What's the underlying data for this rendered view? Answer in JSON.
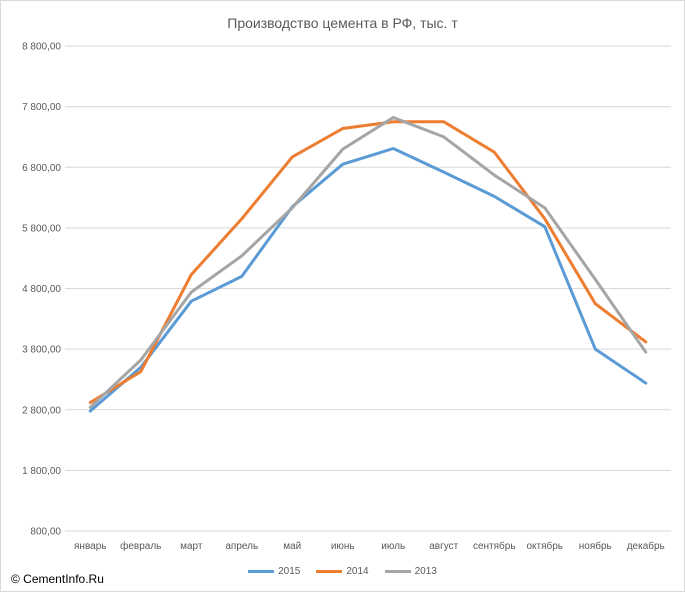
{
  "chart_data": {
    "type": "line",
    "title": "Производство цемента в РФ, тыс. т",
    "categories": [
      "январь",
      "февраль",
      "март",
      "апрель",
      "май",
      "июнь",
      "июль",
      "август",
      "сентябрь",
      "октябрь",
      "ноябрь",
      "декабрь"
    ],
    "y_ticks": [
      "800,00",
      "1 800,00",
      "2 800,00",
      "3 800,00",
      "4 800,00",
      "5 800,00",
      "6 800,00",
      "7 800,00",
      "8 800,00"
    ],
    "ylim": [
      800,
      8800
    ],
    "grid": true,
    "legend_position": "bottom",
    "series": [
      {
        "name": "2015",
        "color": "#5b9bd5",
        "values": [
          2780,
          3500,
          4590,
          5000,
          6150,
          6850,
          7110,
          6720,
          6320,
          5820,
          3800,
          3240
        ]
      },
      {
        "name": "2014",
        "color": "#ed7d31",
        "values": [
          2920,
          3430,
          5030,
          5950,
          6970,
          7440,
          7550,
          7550,
          7050,
          5950,
          4550,
          3920
        ]
      },
      {
        "name": "2013",
        "color": "#a5a5a5",
        "values": [
          2840,
          3620,
          4740,
          5340,
          6130,
          7100,
          7620,
          7300,
          6670,
          6130,
          4950,
          3750
        ]
      }
    ]
  },
  "footer": {
    "credit": "© CementInfo.Ru"
  }
}
